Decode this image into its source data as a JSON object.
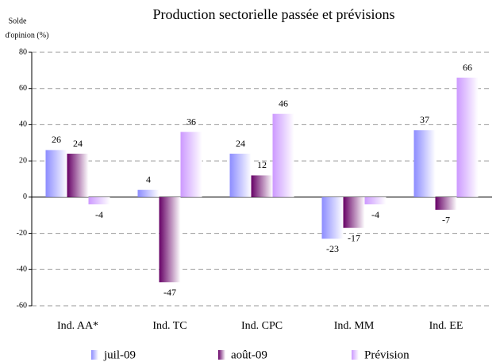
{
  "chart_data": {
    "type": "bar",
    "title": "Production sectorielle passée et prévisions",
    "ylabel_lines": [
      "Solde",
      "d'opinion (%)"
    ],
    "categories": [
      "Ind. AA*",
      "Ind. TC",
      "Ind. CPC",
      "Ind. MM",
      "Ind. EE"
    ],
    "series": [
      {
        "name": "juil-09",
        "color": "#8c8cff",
        "values": [
          26,
          4,
          24,
          -23,
          37
        ]
      },
      {
        "name": "août-09",
        "color": "#660066",
        "values": [
          24,
          -47,
          12,
          -17,
          -7
        ]
      },
      {
        "name": "Prévision",
        "color": "#cc99ff",
        "values": [
          -4,
          36,
          46,
          -4,
          66
        ]
      }
    ],
    "ylim": [
      -60,
      80
    ],
    "yticks": [
      -60,
      -40,
      -20,
      0,
      20,
      40,
      60,
      80
    ],
    "grid": true
  }
}
